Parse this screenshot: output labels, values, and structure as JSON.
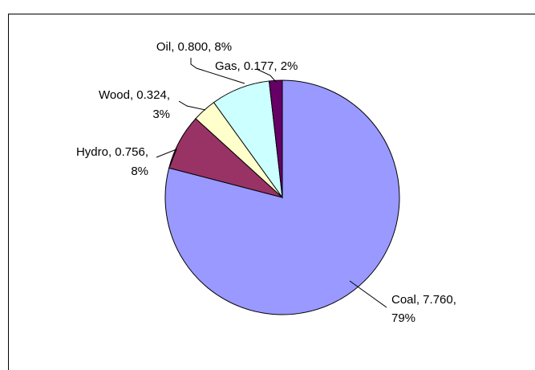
{
  "chart_data": {
    "type": "pie",
    "title": "",
    "start_angle_deg": 0,
    "direction": "clockwise",
    "slices": [
      {
        "name": "Coal",
        "value": 7.76,
        "percent": "79%",
        "color": "#9999FF"
      },
      {
        "name": "Hydro",
        "value": 0.756,
        "percent": "8%",
        "color": "#993366"
      },
      {
        "name": "Wood",
        "value": 0.324,
        "percent": "3%",
        "color": "#FFFFCC"
      },
      {
        "name": "Oil",
        "value": 0.8,
        "percent": "8%",
        "color": "#CCFFFF"
      },
      {
        "name": "Gas",
        "value": 0.177,
        "percent": "2%",
        "color": "#660066"
      }
    ],
    "labels": [
      {
        "slice": "Coal",
        "lines": [
          "Coal, 7.760,",
          "79%"
        ]
      },
      {
        "slice": "Hydro",
        "lines": [
          "Hydro, 0.756,",
          "8%"
        ]
      },
      {
        "slice": "Wood",
        "lines": [
          "Wood, 0.324,",
          "3%"
        ]
      },
      {
        "slice": "Oil",
        "lines": [
          "Oil, 0.800, 8%"
        ]
      },
      {
        "slice": "Gas",
        "lines": [
          "Gas, 0.177, 2%"
        ]
      }
    ],
    "legend": "none",
    "border": true,
    "border_color": "#000000"
  }
}
